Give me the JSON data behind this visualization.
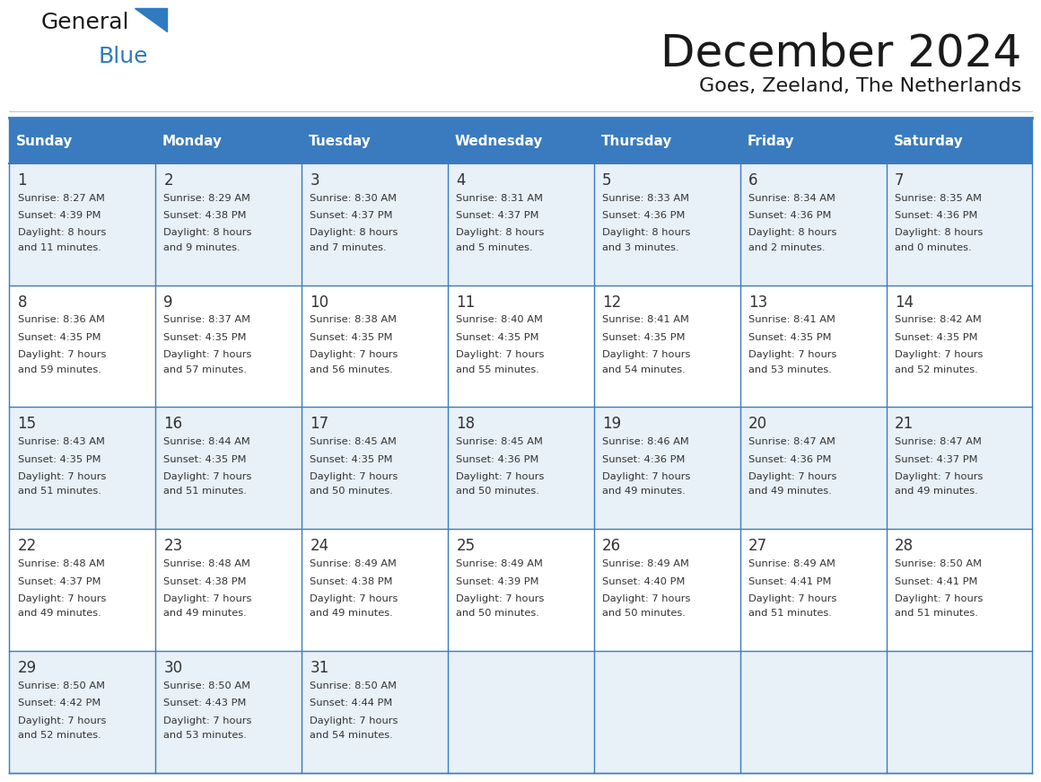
{
  "title": "December 2024",
  "subtitle": "Goes, Zeeland, The Netherlands",
  "days_of_week": [
    "Sunday",
    "Monday",
    "Tuesday",
    "Wednesday",
    "Thursday",
    "Friday",
    "Saturday"
  ],
  "header_bg": "#3a7bbf",
  "header_text": "#ffffff",
  "row_bg_alt": "#e8f0f8",
  "row_bg_main": "#ffffff",
  "cell_border": "#3a7bbf",
  "day_num_color": "#333333",
  "info_color": "#333333",
  "title_color": "#1a1a1a",
  "subtitle_color": "#1a1a1a",
  "general_text_color": "#1a1a1a",
  "blue_color": "#2e7bbf",
  "calendar_data": [
    [
      {
        "day": 1,
        "sunrise": "8:27 AM",
        "sunset": "4:39 PM",
        "daylight": "8 hours and 11 minutes."
      },
      {
        "day": 2,
        "sunrise": "8:29 AM",
        "sunset": "4:38 PM",
        "daylight": "8 hours and 9 minutes."
      },
      {
        "day": 3,
        "sunrise": "8:30 AM",
        "sunset": "4:37 PM",
        "daylight": "8 hours and 7 minutes."
      },
      {
        "day": 4,
        "sunrise": "8:31 AM",
        "sunset": "4:37 PM",
        "daylight": "8 hours and 5 minutes."
      },
      {
        "day": 5,
        "sunrise": "8:33 AM",
        "sunset": "4:36 PM",
        "daylight": "8 hours and 3 minutes."
      },
      {
        "day": 6,
        "sunrise": "8:34 AM",
        "sunset": "4:36 PM",
        "daylight": "8 hours and 2 minutes."
      },
      {
        "day": 7,
        "sunrise": "8:35 AM",
        "sunset": "4:36 PM",
        "daylight": "8 hours and 0 minutes."
      }
    ],
    [
      {
        "day": 8,
        "sunrise": "8:36 AM",
        "sunset": "4:35 PM",
        "daylight": "7 hours and 59 minutes."
      },
      {
        "day": 9,
        "sunrise": "8:37 AM",
        "sunset": "4:35 PM",
        "daylight": "7 hours and 57 minutes."
      },
      {
        "day": 10,
        "sunrise": "8:38 AM",
        "sunset": "4:35 PM",
        "daylight": "7 hours and 56 minutes."
      },
      {
        "day": 11,
        "sunrise": "8:40 AM",
        "sunset": "4:35 PM",
        "daylight": "7 hours and 55 minutes."
      },
      {
        "day": 12,
        "sunrise": "8:41 AM",
        "sunset": "4:35 PM",
        "daylight": "7 hours and 54 minutes."
      },
      {
        "day": 13,
        "sunrise": "8:41 AM",
        "sunset": "4:35 PM",
        "daylight": "7 hours and 53 minutes."
      },
      {
        "day": 14,
        "sunrise": "8:42 AM",
        "sunset": "4:35 PM",
        "daylight": "7 hours and 52 minutes."
      }
    ],
    [
      {
        "day": 15,
        "sunrise": "8:43 AM",
        "sunset": "4:35 PM",
        "daylight": "7 hours and 51 minutes."
      },
      {
        "day": 16,
        "sunrise": "8:44 AM",
        "sunset": "4:35 PM",
        "daylight": "7 hours and 51 minutes."
      },
      {
        "day": 17,
        "sunrise": "8:45 AM",
        "sunset": "4:35 PM",
        "daylight": "7 hours and 50 minutes."
      },
      {
        "day": 18,
        "sunrise": "8:45 AM",
        "sunset": "4:36 PM",
        "daylight": "7 hours and 50 minutes."
      },
      {
        "day": 19,
        "sunrise": "8:46 AM",
        "sunset": "4:36 PM",
        "daylight": "7 hours and 49 minutes."
      },
      {
        "day": 20,
        "sunrise": "8:47 AM",
        "sunset": "4:36 PM",
        "daylight": "7 hours and 49 minutes."
      },
      {
        "day": 21,
        "sunrise": "8:47 AM",
        "sunset": "4:37 PM",
        "daylight": "7 hours and 49 minutes."
      }
    ],
    [
      {
        "day": 22,
        "sunrise": "8:48 AM",
        "sunset": "4:37 PM",
        "daylight": "7 hours and 49 minutes."
      },
      {
        "day": 23,
        "sunrise": "8:48 AM",
        "sunset": "4:38 PM",
        "daylight": "7 hours and 49 minutes."
      },
      {
        "day": 24,
        "sunrise": "8:49 AM",
        "sunset": "4:38 PM",
        "daylight": "7 hours and 49 minutes."
      },
      {
        "day": 25,
        "sunrise": "8:49 AM",
        "sunset": "4:39 PM",
        "daylight": "7 hours and 50 minutes."
      },
      {
        "day": 26,
        "sunrise": "8:49 AM",
        "sunset": "4:40 PM",
        "daylight": "7 hours and 50 minutes."
      },
      {
        "day": 27,
        "sunrise": "8:49 AM",
        "sunset": "4:41 PM",
        "daylight": "7 hours and 51 minutes."
      },
      {
        "day": 28,
        "sunrise": "8:50 AM",
        "sunset": "4:41 PM",
        "daylight": "7 hours and 51 minutes."
      }
    ],
    [
      {
        "day": 29,
        "sunrise": "8:50 AM",
        "sunset": "4:42 PM",
        "daylight": "7 hours and 52 minutes."
      },
      {
        "day": 30,
        "sunrise": "8:50 AM",
        "sunset": "4:43 PM",
        "daylight": "7 hours and 53 minutes."
      },
      {
        "day": 31,
        "sunrise": "8:50 AM",
        "sunset": "4:44 PM",
        "daylight": "7 hours and 54 minutes."
      },
      null,
      null,
      null,
      null
    ]
  ]
}
